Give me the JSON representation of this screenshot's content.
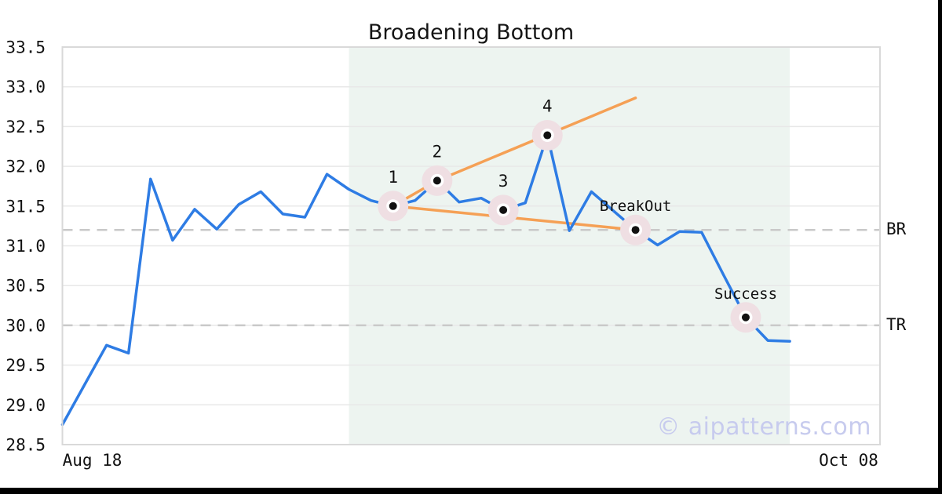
{
  "title": "Broadening Bottom",
  "watermark": "© aipatterns.com",
  "colors": {
    "price_line": "#2e7ce4",
    "trendline": "#f5a055",
    "pattern_region": "#edf4f0",
    "marker_halo": "#efdfe3",
    "marker_dot": "#111111",
    "grid": "#e8e8e8",
    "spine": "#d9d9d9",
    "dashed_level": "#c9c9c9",
    "text": "#111111",
    "watermark_color": "#c7cbee"
  },
  "axes": {
    "y_tick_labels": [
      "33.5",
      "33.0",
      "32.5",
      "32.0",
      "31.5",
      "31.0",
      "30.5",
      "30.0",
      "29.5",
      "29.0",
      "28.5"
    ],
    "x_tick_labels": [
      "Aug 18",
      "Oct 08"
    ]
  },
  "levels": {
    "breakout": {
      "label": "BR",
      "value": 31.2
    },
    "target": {
      "label": "TR",
      "value": 30.0
    }
  },
  "chart_data": {
    "type": "line",
    "title": "Broadening Bottom",
    "ylim": [
      28.5,
      33.5
    ],
    "y_tick_step": 0.5,
    "x_axis": {
      "start_label": "Aug 18",
      "end_label": "Oct 08"
    },
    "grid": "horizontal",
    "values": [
      28.75,
      29.25,
      29.75,
      29.65,
      31.84,
      31.07,
      31.46,
      31.21,
      31.52,
      31.68,
      31.4,
      31.36,
      31.9,
      31.71,
      31.57,
      31.5,
      31.57,
      31.82,
      31.55,
      31.6,
      31.45,
      31.54,
      32.39,
      31.19,
      31.68,
      31.44,
      31.2,
      31.01,
      31.18,
      31.17,
      30.63,
      30.1,
      29.81,
      29.8
    ],
    "pattern_points": [
      {
        "label": "1",
        "index": 15,
        "value": 31.5
      },
      {
        "label": "2",
        "index": 17,
        "value": 31.82
      },
      {
        "label": "3",
        "index": 20,
        "value": 31.45
      },
      {
        "label": "4",
        "index": 22,
        "value": 32.39
      },
      {
        "label": "BreakOut",
        "index": 26,
        "value": 31.2
      },
      {
        "label": "Success",
        "index": 31,
        "value": 30.1
      }
    ],
    "trendlines": [
      {
        "name": "upper",
        "points": [
          [
            15,
            31.5
          ],
          [
            17,
            31.82
          ],
          [
            26,
            32.86
          ]
        ]
      },
      {
        "name": "lower",
        "points": [
          [
            15,
            31.5
          ],
          [
            26,
            31.2
          ]
        ]
      }
    ],
    "pattern_region": {
      "start_index": 13,
      "end_index": 33
    },
    "levels": [
      {
        "name": "breakout",
        "label": "BR",
        "value": 31.2
      },
      {
        "name": "target",
        "label": "TR",
        "value": 30.0
      }
    ]
  }
}
